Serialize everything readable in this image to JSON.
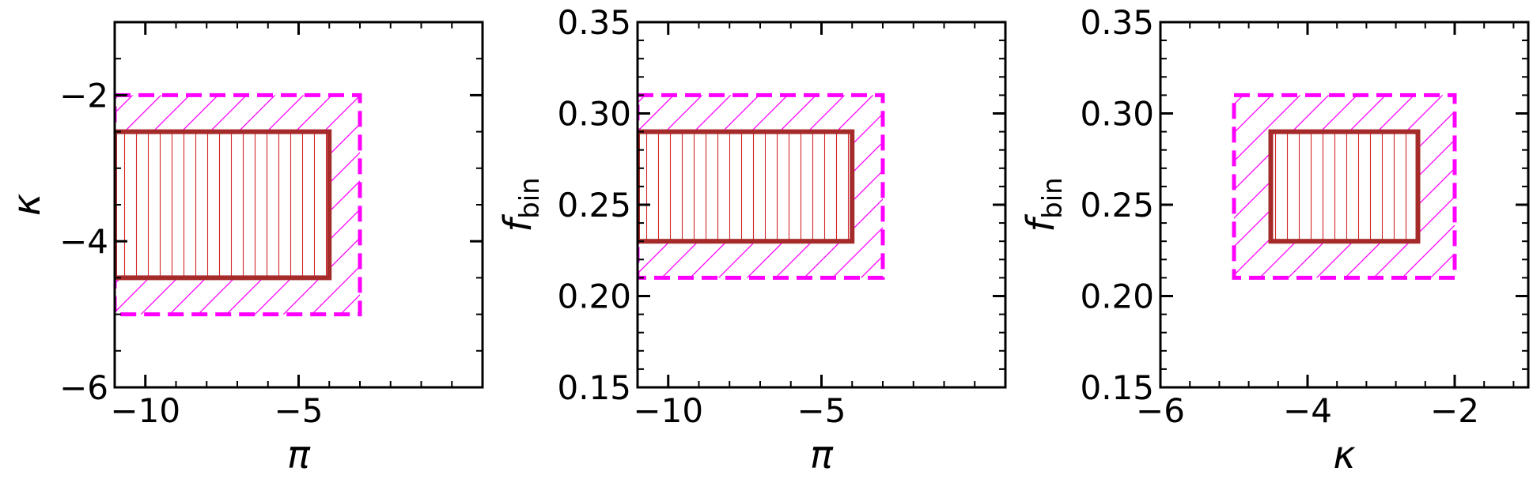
{
  "chart_data": [
    {
      "type": "area",
      "xlabel": "π",
      "ylabel": "κ",
      "xlim": [
        -11,
        1
      ],
      "ylim": [
        -6,
        -1
      ],
      "xticks": [
        -10,
        -5
      ],
      "xtick_labels": [
        "−10",
        "−5"
      ],
      "yticks": [
        -6,
        -4,
        -2
      ],
      "ytick_labels": [
        "−6",
        "−4",
        "−2"
      ],
      "outer_region": {
        "x": [
          -11,
          -3
        ],
        "y": [
          -5,
          -2
        ],
        "color": "#ff00ff",
        "style": "dashed",
        "hatch": "diagonal"
      },
      "inner_region": {
        "x": [
          -11,
          -4
        ],
        "y": [
          -4.5,
          -2.5
        ],
        "color": "#a52a2a",
        "style": "solid",
        "hatch": "vertical"
      }
    },
    {
      "type": "area",
      "xlabel": "π",
      "ylabel": "f",
      "ylabel_sub": "bin",
      "xlim": [
        -11,
        1
      ],
      "ylim": [
        0.15,
        0.35
      ],
      "xticks": [
        -10,
        -5
      ],
      "xtick_labels": [
        "−10",
        "−5"
      ],
      "yticks": [
        0.15,
        0.2,
        0.25,
        0.3,
        0.35
      ],
      "ytick_labels": [
        "0.15",
        "0.20",
        "0.25",
        "0.30",
        "0.35"
      ],
      "outer_region": {
        "x": [
          -11,
          -3
        ],
        "y": [
          0.21,
          0.31
        ],
        "color": "#ff00ff",
        "style": "dashed",
        "hatch": "diagonal"
      },
      "inner_region": {
        "x": [
          -11,
          -4
        ],
        "y": [
          0.23,
          0.29
        ],
        "color": "#a52a2a",
        "style": "solid",
        "hatch": "vertical"
      }
    },
    {
      "type": "area",
      "xlabel": "κ",
      "ylabel": "f",
      "ylabel_sub": "bin",
      "xlim": [
        -6,
        -1
      ],
      "ylim": [
        0.15,
        0.35
      ],
      "xticks": [
        -6,
        -4,
        -2
      ],
      "xtick_labels": [
        "−6",
        "−4",
        "−2"
      ],
      "yticks": [
        0.15,
        0.2,
        0.25,
        0.3,
        0.35
      ],
      "ytick_labels": [
        "0.15",
        "0.20",
        "0.25",
        "0.30",
        "0.35"
      ],
      "outer_region": {
        "x": [
          -5,
          -2
        ],
        "y": [
          0.21,
          0.31
        ],
        "color": "#ff00ff",
        "style": "dashed",
        "hatch": "diagonal"
      },
      "inner_region": {
        "x": [
          -4.5,
          -2.5
        ],
        "y": [
          0.23,
          0.29
        ],
        "color": "#a52a2a",
        "style": "solid",
        "hatch": "vertical"
      }
    }
  ]
}
